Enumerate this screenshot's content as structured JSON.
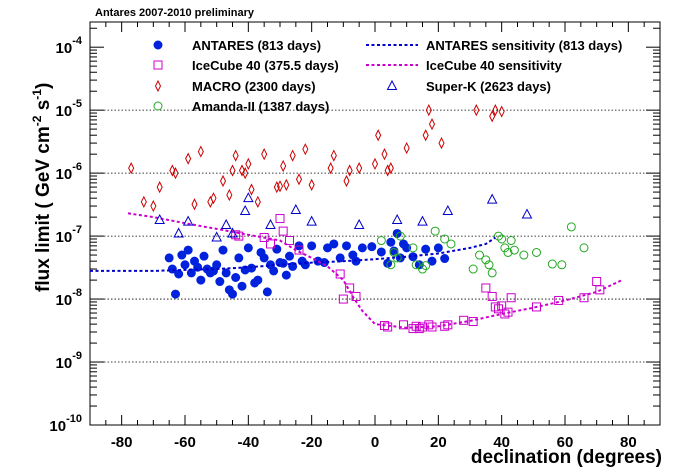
{
  "chart_data": {
    "type": "scatter",
    "title": "Antares 2007-2010 preliminary",
    "xlabel": "declination (degrees)",
    "ylabel": "flux limit ( GeV cm",
    "ylabel_sup1": "-2",
    "ylabel_mid": " s",
    "ylabel_sup2": "-1",
    "ylabel_end": ")",
    "xlim": [
      -90,
      90
    ],
    "ylim_log10": [
      -10,
      -3.6
    ],
    "yscale": "log",
    "x_ticks": [
      -80,
      -60,
      -40,
      -20,
      0,
      20,
      40,
      60,
      80
    ],
    "y_ticks": [
      {
        "exp": -10,
        "label": "10",
        "sup": "-10"
      },
      {
        "exp": -9,
        "label": "10",
        "sup": "-9"
      },
      {
        "exp": -8,
        "label": "10",
        "sup": "-8"
      },
      {
        "exp": -7,
        "label": "10",
        "sup": "-7"
      },
      {
        "exp": -6,
        "label": "10",
        "sup": "-6"
      },
      {
        "exp": -5,
        "label": "10",
        "sup": "-5"
      },
      {
        "exp": -4,
        "label": "10",
        "sup": "-4"
      }
    ],
    "grid_y_exps": [
      -9,
      -8,
      -7,
      -6,
      -5
    ],
    "legend_position": "top",
    "series": [
      {
        "name": "ANTARES (813 days)",
        "marker": "filled-circle",
        "color": "#0022dd",
        "points": [
          [
            -65,
            4.5e-08
          ],
          [
            -64,
            3e-08
          ],
          [
            -63,
            1.2e-08
          ],
          [
            -62,
            2.5e-08
          ],
          [
            -61,
            5e-08
          ],
          [
            -60,
            3.5e-08
          ],
          [
            -59,
            6e-08
          ],
          [
            -58,
            2.6e-08
          ],
          [
            -57,
            4e-08
          ],
          [
            -56,
            3.2e-08
          ],
          [
            -55,
            2e-08
          ],
          [
            -54,
            4.8e-08
          ],
          [
            -53,
            3e-08
          ],
          [
            -52,
            2.6e-08
          ],
          [
            -51,
            2.8e-08
          ],
          [
            -50,
            3.5e-08
          ],
          [
            -49,
            1.9e-08
          ],
          [
            -48,
            6e-08
          ],
          [
            -47,
            2.6e-08
          ],
          [
            -46,
            1.4e-08
          ],
          [
            -45,
            1.2e-08
          ],
          [
            -44,
            2.2e-08
          ],
          [
            -43,
            4.5e-08
          ],
          [
            -42,
            1.6e-08
          ],
          [
            -41,
            2.9e-08
          ],
          [
            -40,
            6.5e-08
          ],
          [
            -39,
            3.1e-08
          ],
          [
            -38,
            1.8e-08
          ],
          [
            -37,
            2e-08
          ],
          [
            -36,
            5.5e-08
          ],
          [
            -35,
            4.5e-08
          ],
          [
            -34,
            1.3e-08
          ],
          [
            -33,
            3.5e-08
          ],
          [
            -32,
            2.8e-08
          ],
          [
            -31,
            6.2e-08
          ],
          [
            -30,
            3.8e-08
          ],
          [
            -29,
            3.7e-08
          ],
          [
            -28,
            2.4e-08
          ],
          [
            -27,
            4.8e-08
          ],
          [
            -26,
            3.3e-08
          ],
          [
            -24,
            7e-08
          ],
          [
            -23,
            4e-08
          ],
          [
            -22,
            3.5e-08
          ],
          [
            -20,
            7e-08
          ],
          [
            -18,
            4e-08
          ],
          [
            -16,
            3.8e-08
          ],
          [
            -15,
            6.5e-08
          ],
          [
            -13,
            7.5e-08
          ],
          [
            -11,
            4.5e-08
          ],
          [
            -9,
            7e-08
          ],
          [
            -7,
            5e-08
          ],
          [
            -6,
            4e-08
          ],
          [
            -4,
            6.5e-08
          ],
          [
            -1,
            6.8e-08
          ],
          [
            2,
            5.6e-08
          ],
          [
            4,
            3.7e-08
          ],
          [
            5,
            8e-08
          ],
          [
            6,
            5.8e-08
          ],
          [
            7,
            1.1e-07
          ],
          [
            8,
            4.5e-08
          ],
          [
            9,
            7.5e-08
          ],
          [
            10,
            6.5e-08
          ],
          [
            12,
            4.7e-08
          ],
          [
            14,
            3.5e-08
          ],
          [
            16,
            6.2e-08
          ],
          [
            18,
            4e-08
          ],
          [
            20,
            6.5e-08
          ],
          [
            22,
            4.4e-08
          ]
        ]
      },
      {
        "name": "IceCube 40 (375.5 days)",
        "marker": "open-square",
        "color": "#cc00cc",
        "points": [
          [
            -44,
            1.05e-07
          ],
          [
            -43,
            1e-07
          ],
          [
            -35,
            9.5e-08
          ],
          [
            -33,
            7.5e-08
          ],
          [
            -30,
            1.9e-07
          ],
          [
            -29,
            1.2e-07
          ],
          [
            -27,
            8.5e-08
          ],
          [
            -24,
            6e-08
          ],
          [
            -11,
            2.5e-08
          ],
          [
            -10,
            1e-08
          ],
          [
            -8,
            1.5e-08
          ],
          [
            -6,
            1.1e-08
          ],
          [
            3,
            3.8e-09
          ],
          [
            4,
            3.6e-09
          ],
          [
            9,
            3.9e-09
          ],
          [
            12,
            3.4e-09
          ],
          [
            13,
            3.7e-09
          ],
          [
            14,
            3.4e-09
          ],
          [
            15,
            3.6e-09
          ],
          [
            17,
            3.9e-09
          ],
          [
            18,
            3.6e-09
          ],
          [
            22,
            3.7e-09
          ],
          [
            23,
            3.9e-09
          ],
          [
            28,
            4.6e-09
          ],
          [
            31,
            4.4e-09
          ],
          [
            35,
            1.5e-08
          ],
          [
            37,
            1.1e-08
          ],
          [
            38,
            7.5e-09
          ],
          [
            39,
            7e-09
          ],
          [
            40,
            7.8e-09
          ],
          [
            41,
            5.8e-09
          ],
          [
            42,
            6.2e-09
          ],
          [
            43,
            1.05e-08
          ],
          [
            51,
            7.5e-09
          ],
          [
            58,
            9.5e-09
          ],
          [
            66,
            1.05e-08
          ],
          [
            70,
            1.9e-08
          ],
          [
            71,
            1.4e-08
          ]
        ]
      },
      {
        "name": "MACRO (2300 days)",
        "marker": "open-diamond",
        "color": "#cc0000",
        "points": [
          [
            -77,
            1.2e-06
          ],
          [
            -73,
            3.5e-07
          ],
          [
            -70,
            3e-07
          ],
          [
            -68,
            6e-07
          ],
          [
            -64,
            1.1e-06
          ],
          [
            -63,
            1e-06
          ],
          [
            -59,
            1.7e-06
          ],
          [
            -57,
            3.2e-07
          ],
          [
            -55,
            2.2e-06
          ],
          [
            -52,
            3.5e-07
          ],
          [
            -51,
            4e-07
          ],
          [
            -48,
            7.5e-07
          ],
          [
            -46,
            4.5e-07
          ],
          [
            -45,
            1.1e-06
          ],
          [
            -44,
            1.9e-06
          ],
          [
            -42,
            1.1e-06
          ],
          [
            -41,
            1e-06
          ],
          [
            -40,
            1.4e-06
          ],
          [
            -39,
            5.5e-07
          ],
          [
            -37,
            3.5e-07
          ],
          [
            -35,
            2e-06
          ],
          [
            -31,
            6e-07
          ],
          [
            -30,
            6.2e-07
          ],
          [
            -29,
            1.3e-06
          ],
          [
            -28,
            6.5e-07
          ],
          [
            -26,
            1.9e-06
          ],
          [
            -24,
            8e-07
          ],
          [
            -22,
            2.4e-06
          ],
          [
            -20,
            6.5e-07
          ],
          [
            -14,
            1.2e-06
          ],
          [
            -13,
            1.9e-06
          ],
          [
            -9,
            7.5e-07
          ],
          [
            -8,
            1.1e-06
          ],
          [
            -5,
            1.2e-06
          ],
          [
            0,
            1.4e-06
          ],
          [
            1,
            4e-06
          ],
          [
            3,
            2e-06
          ],
          [
            4,
            1.1e-06
          ],
          [
            5,
            1.2e-06
          ],
          [
            10,
            2.5e-06
          ],
          [
            16,
            4e-06
          ],
          [
            17,
            1e-05
          ],
          [
            18,
            6e-06
          ],
          [
            21,
            3e-06
          ],
          [
            32,
            1e-05
          ],
          [
            37,
            8e-06
          ],
          [
            38,
            1e-05
          ],
          [
            40,
            9.5e-06
          ]
        ]
      },
      {
        "name": "Amanda-II (1387 days)",
        "marker": "open-circle",
        "color": "#22aa22",
        "points": [
          [
            2,
            8.5e-08
          ],
          [
            5,
            3.5e-08
          ],
          [
            6,
            5.5e-08
          ],
          [
            7,
            4.5e-08
          ],
          [
            8,
            1e-07
          ],
          [
            12,
            6.5e-08
          ],
          [
            13,
            3.5e-08
          ],
          [
            15,
            3e-08
          ],
          [
            16,
            3.4e-08
          ],
          [
            19,
            1.2e-07
          ],
          [
            22,
            9e-08
          ],
          [
            24,
            7.5e-08
          ],
          [
            31,
            3e-08
          ],
          [
            33,
            5e-08
          ],
          [
            35,
            4.2e-08
          ],
          [
            36,
            3.5e-08
          ],
          [
            37,
            2.6e-08
          ],
          [
            39,
            1e-07
          ],
          [
            40,
            9e-08
          ],
          [
            41,
            6.5e-08
          ],
          [
            42,
            5.5e-08
          ],
          [
            43,
            8.5e-08
          ],
          [
            44,
            6e-08
          ],
          [
            47,
            5e-08
          ],
          [
            51,
            5.5e-08
          ],
          [
            56,
            3.6e-08
          ],
          [
            59,
            3.5e-08
          ],
          [
            62,
            1.4e-07
          ],
          [
            66,
            6.5e-08
          ]
        ]
      },
      {
        "name": "ANTARES sensitivity (813 days)",
        "marker": "dashed-line",
        "color": "#0000cc",
        "points": [
          [
            -90,
            2.8e-08
          ],
          [
            -70,
            2.8e-08
          ],
          [
            -60,
            2.9e-08
          ],
          [
            -50,
            3e-08
          ],
          [
            -40,
            3.2e-08
          ],
          [
            -30,
            3.5e-08
          ],
          [
            -20,
            3.8e-08
          ],
          [
            -10,
            4e-08
          ],
          [
            0,
            4.3e-08
          ],
          [
            10,
            4.7e-08
          ],
          [
            20,
            5.3e-08
          ],
          [
            30,
            6.5e-08
          ],
          [
            35,
            7.5e-08
          ],
          [
            38,
            9.5e-08
          ]
        ]
      },
      {
        "name": "IceCube 40 sensitivity",
        "marker": "dashed-line",
        "color": "#cc00cc",
        "points": [
          [
            -78,
            2.3e-07
          ],
          [
            -70,
            2e-07
          ],
          [
            -60,
            1.6e-07
          ],
          [
            -50,
            1.3e-07
          ],
          [
            -40,
            1.05e-07
          ],
          [
            -30,
            8.5e-08
          ],
          [
            -25,
            6e-08
          ],
          [
            -20,
            4.5e-08
          ],
          [
            -15,
            3.3e-08
          ],
          [
            -10,
            2e-08
          ],
          [
            -7,
            1.1e-08
          ],
          [
            -4,
            6.5e-09
          ],
          [
            0,
            4e-09
          ],
          [
            10,
            3.5e-09
          ],
          [
            20,
            3.7e-09
          ],
          [
            30,
            4.5e-09
          ],
          [
            40,
            5.8e-09
          ],
          [
            50,
            7.3e-09
          ],
          [
            60,
            9.5e-09
          ],
          [
            70,
            1.3e-08
          ],
          [
            78,
            2e-08
          ]
        ]
      },
      {
        "name": "Super-K (2623 days)",
        "marker": "open-triangle",
        "color": "#0000cc",
        "points": [
          [
            -68,
            1.8e-07
          ],
          [
            -62,
            1.1e-07
          ],
          [
            -59,
            1.7e-07
          ],
          [
            -50,
            9.5e-08
          ],
          [
            -47,
            1.5e-07
          ],
          [
            -45,
            1.1e-07
          ],
          [
            -41,
            2.5e-07
          ],
          [
            -40,
            4e-07
          ],
          [
            -33,
            1.5e-07
          ],
          [
            -25,
            2.6e-07
          ],
          [
            -20,
            1.7e-07
          ],
          [
            -5,
            1.5e-07
          ],
          [
            7,
            1.8e-07
          ],
          [
            15,
            1.7e-07
          ],
          [
            23,
            2.5e-07
          ],
          [
            37,
            3.8e-07
          ],
          [
            48,
            2.2e-07
          ]
        ]
      }
    ]
  }
}
